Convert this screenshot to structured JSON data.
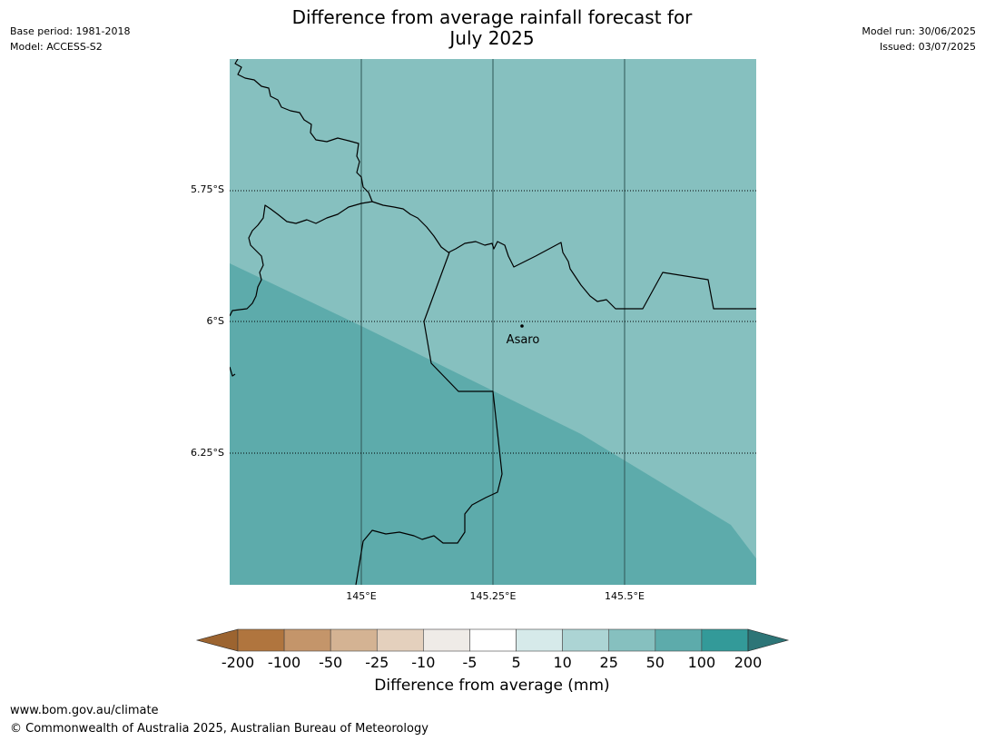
{
  "header": {
    "title_line1": "Difference from average rainfall forecast for",
    "title_line2": "July 2025",
    "base_period": "Base period: 1981-2018",
    "model": "Model: ACCESS-S2",
    "model_run": "Model run: 30/06/2025",
    "issued": "Issued: 03/07/2025"
  },
  "map": {
    "lat_labels": [
      "5.75°S",
      "6°S",
      "6.25°S"
    ],
    "lon_labels": [
      "145°E",
      "145.25°E",
      "145.5°E"
    ],
    "place": "Asaro",
    "colors": {
      "zone_25_50": "#86c0bf",
      "zone_50_100": "#5dabab"
    }
  },
  "colorbar": {
    "ticks": [
      "-200",
      "-100",
      "-50",
      "-25",
      "-10",
      "-5",
      "5",
      "10",
      "25",
      "50",
      "100",
      "200"
    ],
    "colors": [
      "#9c6430",
      "#b0753e",
      "#c4956a",
      "#d4b393",
      "#e4d0bd",
      "#efebe7",
      "#ffffff",
      "#d6eaea",
      "#acd4d4",
      "#86c0bf",
      "#5dabab",
      "#339a99",
      "#2d7577"
    ],
    "label": "Difference from average (mm)"
  },
  "footer": {
    "url": "www.bom.gov.au/climate",
    "copyright": "© Commonwealth of Australia 2025, Australian Bureau of Meteorology"
  }
}
